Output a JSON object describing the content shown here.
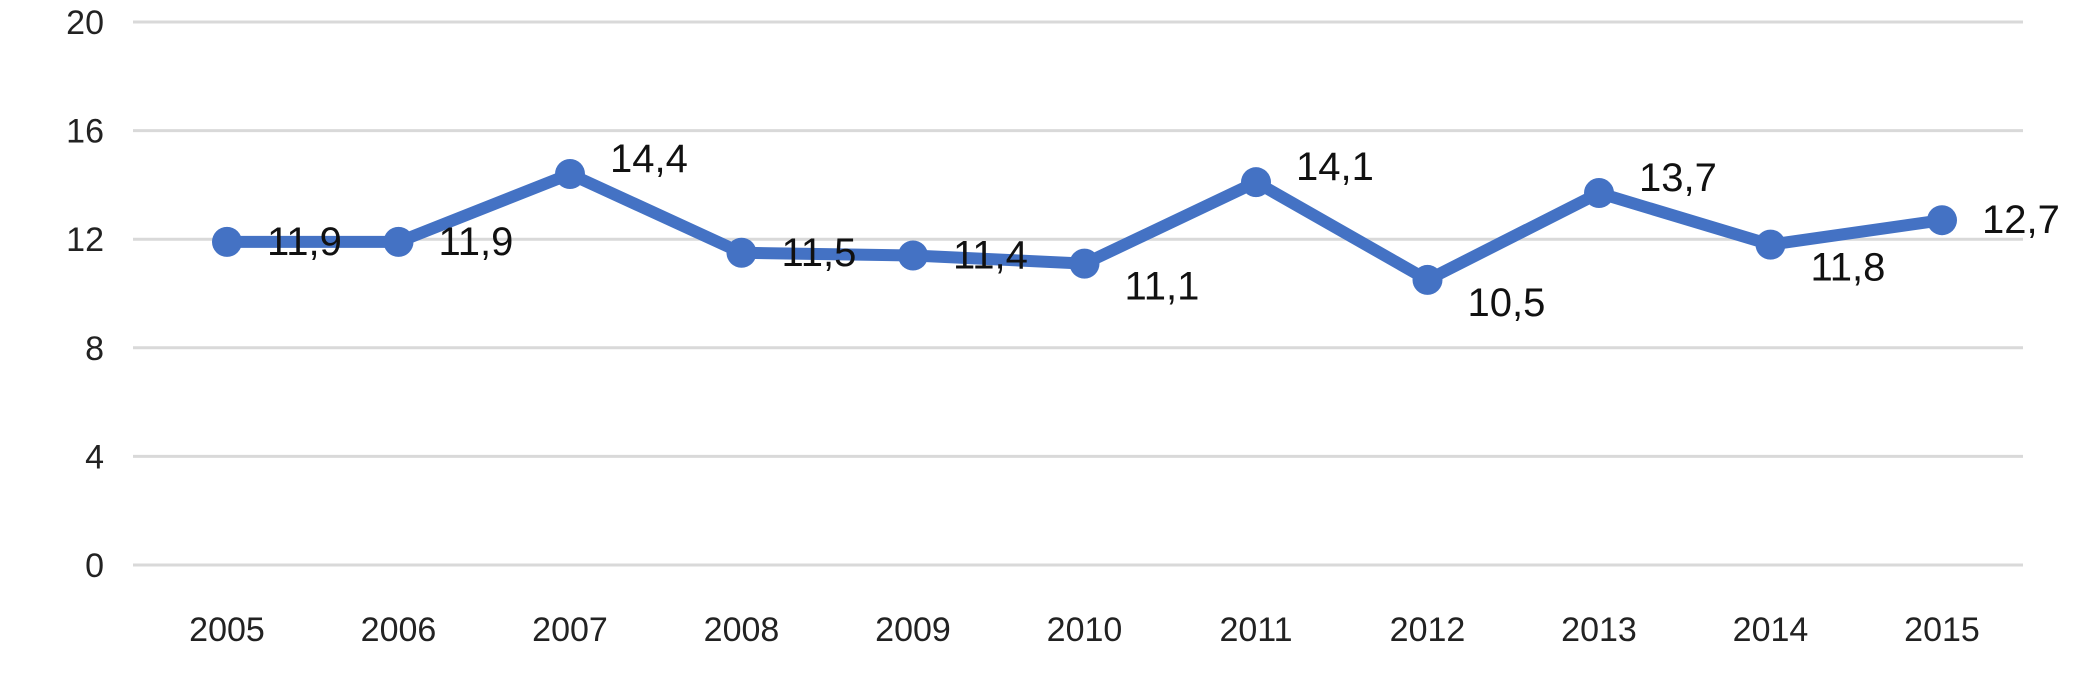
{
  "chart_data": {
    "type": "line",
    "title": "",
    "xlabel": "",
    "ylabel": "",
    "categories": [
      "2005",
      "2006",
      "2007",
      "2008",
      "2009",
      "2010",
      "2011",
      "2012",
      "2013",
      "2014",
      "2015"
    ],
    "series": [
      {
        "values": [
          11.9,
          11.9,
          14.4,
          11.5,
          11.4,
          11.1,
          14.1,
          10.5,
          13.7,
          11.8,
          12.7
        ],
        "value_labels": [
          "11,9",
          "11,9",
          "14,4",
          "11,5",
          "11,4",
          "11,1",
          "14,1",
          "10,5",
          "13,7",
          "11,8",
          "12,7"
        ],
        "color": "#4472C4"
      }
    ],
    "ylim": [
      0,
      20
    ],
    "yticks": [
      "0",
      "4",
      "8",
      "12",
      "16",
      "20"
    ],
    "grid": true,
    "legend": "none"
  }
}
